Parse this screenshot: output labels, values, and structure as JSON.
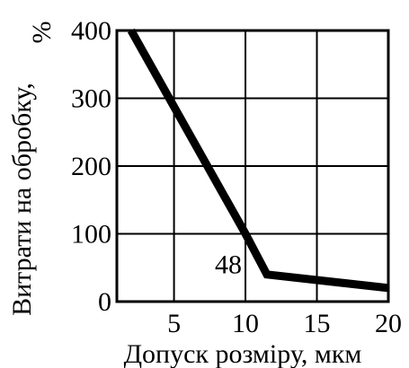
{
  "chart_data": {
    "type": "line",
    "xlabel": "Допуск розміру, мкм",
    "ylabel": "Витрати на обробку,",
    "yunit": "%",
    "xlim": [
      1,
      20
    ],
    "ylim": [
      0,
      400
    ],
    "xticks": [
      5,
      10,
      15,
      20
    ],
    "yticks": [
      0,
      100,
      200,
      300,
      400
    ],
    "grid": true,
    "series": [
      {
        "x": [
          2,
          10,
          11.5,
          20
        ],
        "y": [
          400,
          100,
          40,
          20
        ]
      }
    ],
    "annotations": [
      {
        "text": "48",
        "x": 8.8,
        "y": 42
      }
    ]
  }
}
